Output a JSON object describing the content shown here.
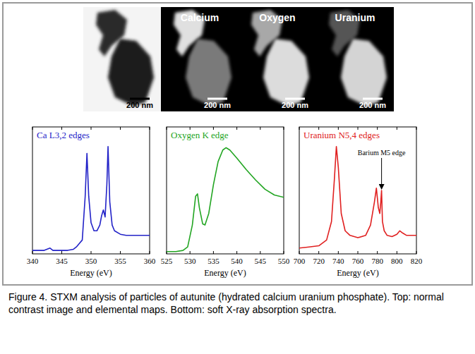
{
  "images": {
    "panels": [
      {
        "scale_bar": "200 nm"
      },
      {
        "label": "Calcium",
        "scale_bar": "200 nm"
      },
      {
        "label": "Oxygen",
        "scale_bar": "200 nm"
      },
      {
        "label": "Uranium",
        "scale_bar": "200 nm"
      }
    ]
  },
  "chart_data": [
    {
      "type": "line",
      "title": "Ca L3,2 edges",
      "x_label": "Energy (eV)",
      "color": "#2323c8",
      "xlim": [
        340,
        360
      ],
      "xticks": [
        340,
        345,
        350,
        355,
        360
      ],
      "ylim": [
        0,
        1.1
      ],
      "tick_labels": "x",
      "x": [
        340,
        341,
        342,
        343,
        343.5,
        344,
        345,
        346,
        347,
        347.5,
        348,
        348.5,
        349,
        349.3,
        349.6,
        350,
        350.5,
        351,
        351.5,
        351.8,
        352.1,
        352.4,
        352.7,
        352.9,
        353.2,
        353.6,
        354,
        355,
        356,
        358,
        360
      ],
      "values": [
        0.03,
        0.03,
        0.03,
        0.05,
        0.03,
        0.03,
        0.03,
        0.03,
        0.04,
        0.06,
        0.09,
        0.12,
        0.5,
        0.87,
        0.5,
        0.27,
        0.2,
        0.2,
        0.25,
        0.33,
        0.38,
        0.32,
        0.6,
        0.93,
        0.45,
        0.25,
        0.2,
        0.17,
        0.16,
        0.16,
        0.16
      ]
    },
    {
      "type": "line",
      "title": "Oxygen K edge",
      "x_label": "Energy (eV)",
      "color": "#22a522",
      "xlim": [
        525,
        550
      ],
      "xticks": [
        525,
        530,
        535,
        540,
        545,
        550
      ],
      "ylim": [
        0,
        1.1
      ],
      "tick_labels": "x",
      "x": [
        525,
        527,
        528.5,
        529.5,
        530.5,
        531.2,
        531.6,
        532,
        532.7,
        533.2,
        534,
        535,
        536,
        537,
        537.7,
        538.5,
        540,
        542,
        544,
        546,
        548,
        550
      ],
      "values": [
        0.02,
        0.02,
        0.03,
        0.06,
        0.25,
        0.5,
        0.52,
        0.4,
        0.26,
        0.25,
        0.35,
        0.6,
        0.8,
        0.9,
        0.92,
        0.9,
        0.83,
        0.73,
        0.64,
        0.56,
        0.51,
        0.49
      ]
    },
    {
      "type": "line",
      "title": "Uranium N5,4 edges",
      "x_label": "Energy (eV)",
      "color": "#e02020",
      "xlim": [
        700,
        820
      ],
      "xticks": [
        700,
        720,
        740,
        760,
        780,
        800,
        820
      ],
      "ylim": [
        0,
        1.1
      ],
      "tick_labels": "x",
      "x": [
        700,
        710,
        720,
        728,
        733,
        736,
        738,
        740,
        743,
        747,
        752,
        760,
        768,
        773,
        777,
        779,
        781,
        782.5,
        783.5,
        784.3,
        785.2,
        787,
        790,
        795,
        800,
        803,
        806,
        810,
        820
      ],
      "values": [
        0.05,
        0.06,
        0.07,
        0.12,
        0.28,
        0.65,
        0.93,
        0.75,
        0.35,
        0.2,
        0.16,
        0.14,
        0.16,
        0.25,
        0.45,
        0.57,
        0.4,
        0.35,
        0.45,
        0.55,
        0.28,
        0.2,
        0.16,
        0.15,
        0.17,
        0.2,
        0.18,
        0.16,
        0.16
      ],
      "annotations": [
        {
          "text": "Barium M5 edge",
          "x": 784.3,
          "y": 0.55
        }
      ]
    }
  ],
  "caption": "Figure 4. STXM analysis of particles of autunite (hydrated calcium uranium phosphate). Top: normal contrast image and elemental maps. Bottom: soft X-ray absorption spectra."
}
